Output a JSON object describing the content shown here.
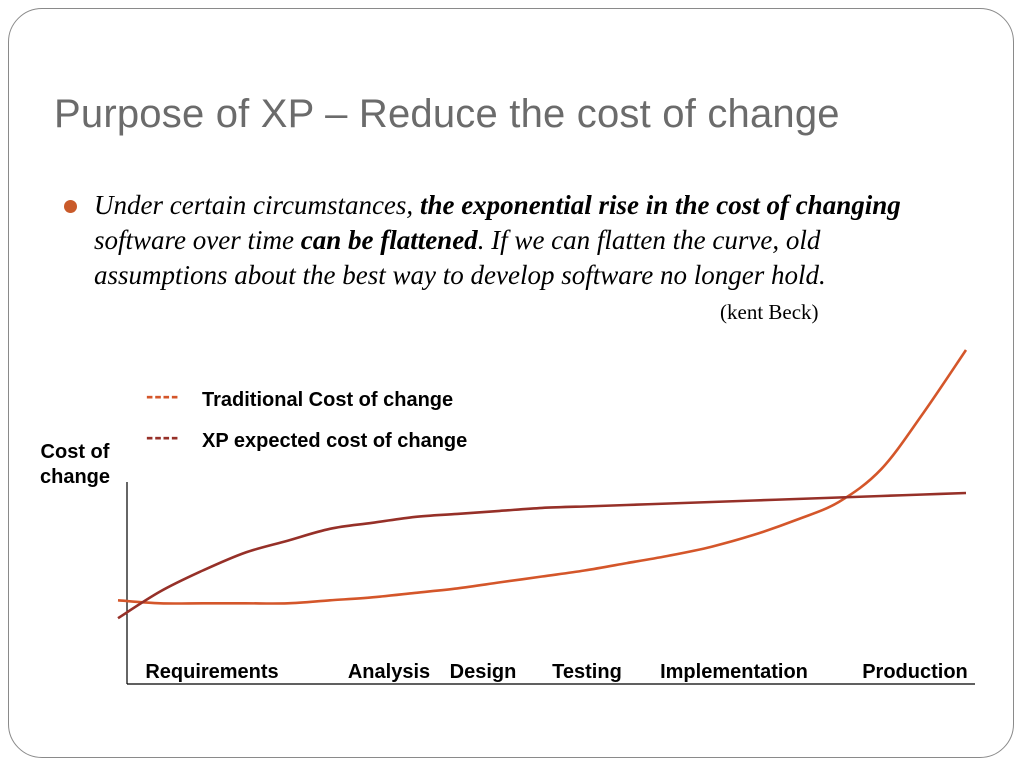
{
  "slide": {
    "title": "Purpose of XP – Reduce the cost of change",
    "quote": {
      "p1": "Under certain circumstances, ",
      "b1": "the exponential rise in the cost of changing",
      "p2": " software over time ",
      "b2": "can be flattened",
      "p3": ". If we can flatten the curve, old assumptions about the best way to develop software no longer hold.",
      "attribution": "(kent Beck)"
    },
    "colors": {
      "accent": "#c95a2a",
      "traditional": "#d4562a",
      "xp": "#963028"
    }
  },
  "chart_data": {
    "type": "line",
    "title": "",
    "xlabel": "",
    "ylabel": "Cost of change",
    "legend_placement": "top-left",
    "grid": false,
    "legend": [
      {
        "marker": "----",
        "label": "Traditional Cost of change"
      },
      {
        "marker": "----",
        "label": "XP expected cost of change"
      }
    ],
    "categories": [
      "Requirements",
      "Analysis",
      "Design",
      "Testing",
      "Implementation",
      "Production"
    ],
    "x": [
      0,
      5,
      10,
      15,
      20,
      25,
      30,
      35,
      40,
      45,
      50,
      55,
      60,
      65,
      70,
      75,
      80,
      85,
      90,
      95,
      100
    ],
    "ylim": [
      0,
      100
    ],
    "series": [
      {
        "color": "#d4562a",
        "values": [
          16,
          15,
          15,
          15,
          15,
          16,
          17,
          18.5,
          20,
          22,
          24,
          26,
          28.5,
          31,
          34,
          38,
          43,
          49,
          60,
          79,
          100
        ]
      },
      {
        "color": "#963028",
        "values": [
          10,
          19,
          26,
          32,
          36,
          40,
          42,
          44,
          45,
          46,
          47,
          47.5,
          48,
          48.5,
          49,
          49.5,
          50,
          50.5,
          51,
          51.5,
          52
        ]
      }
    ]
  }
}
